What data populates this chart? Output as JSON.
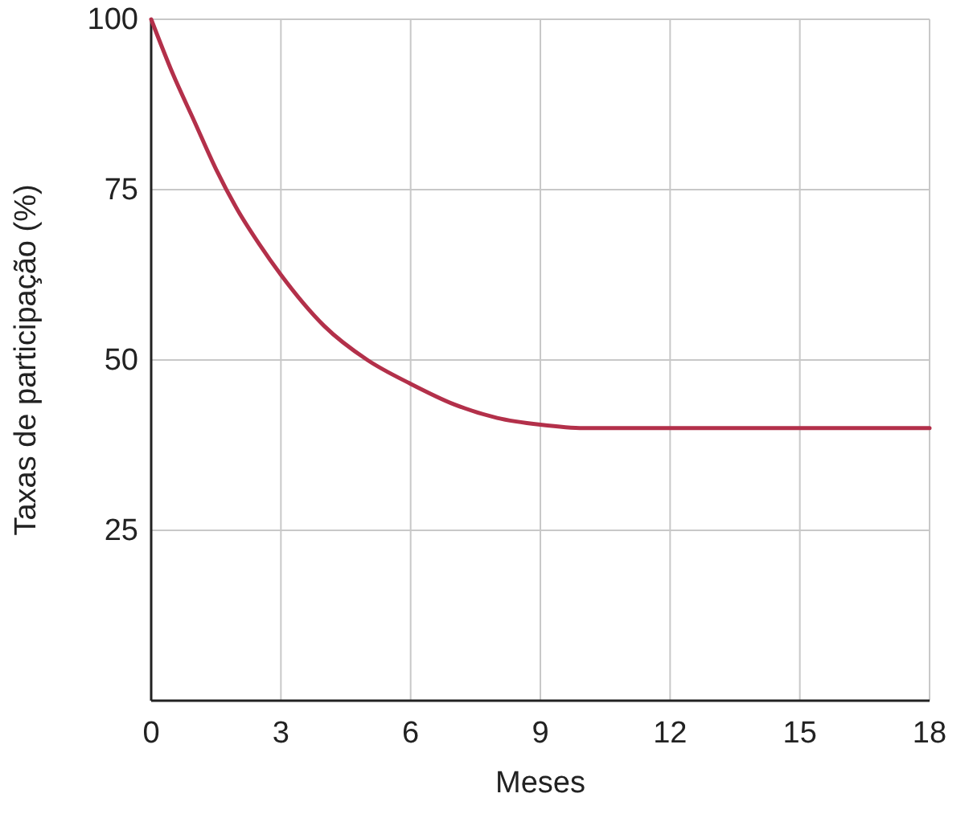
{
  "chart_data": {
    "type": "line",
    "xlabel": "Meses",
    "ylabel": "Taxas de participação (%)",
    "x": [
      0,
      0.5,
      1,
      1.5,
      2,
      2.5,
      3,
      4,
      5,
      6,
      7,
      8,
      9,
      10,
      11,
      12,
      15,
      18
    ],
    "series": [
      {
        "color": "#b3304a",
        "values": [
          100,
          92,
          85,
          78,
          72,
          67,
          62.5,
          55,
          50,
          46.5,
          43.5,
          41.5,
          40.5,
          40,
          40,
          40,
          40,
          40
        ]
      }
    ],
    "xlim": [
      0,
      18
    ],
    "xticks": [
      0,
      3,
      6,
      9,
      12,
      15,
      18
    ],
    "ylim": [
      0,
      100
    ],
    "yticks": [
      25,
      50,
      75,
      100
    ],
    "grid": true,
    "marker": "none",
    "line_style": "solid"
  }
}
